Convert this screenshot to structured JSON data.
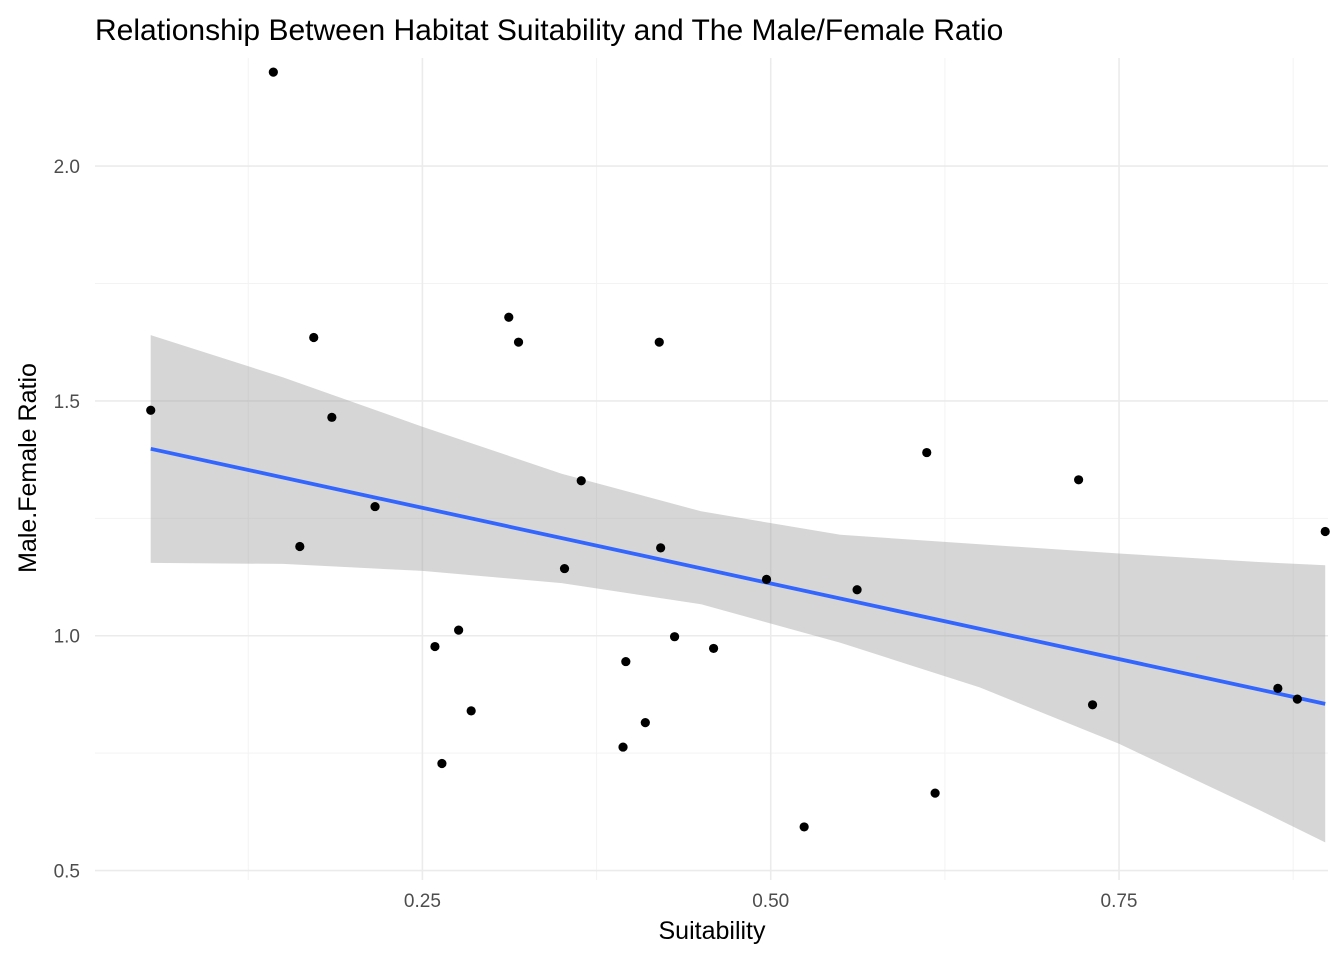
{
  "chart_data": {
    "type": "scatter",
    "title": "Relationship Between Habitat Suitability and The Male/Female Ratio",
    "xlabel": "Suitability",
    "ylabel": "Male.Female Ratio",
    "xlim": [
      0.015,
      0.9
    ],
    "ylim": [
      0.48,
      2.23
    ],
    "x_ticks": [
      0.25,
      0.5,
      0.75
    ],
    "x_tick_labels": [
      "0.25",
      "0.50",
      "0.75"
    ],
    "y_ticks": [
      0.5,
      1.0,
      1.5,
      2.0
    ],
    "y_tick_labels": [
      "0.5",
      "1.0",
      "1.5",
      "2.0"
    ],
    "grid": true,
    "legend": "none",
    "point_color": "#000000",
    "points": [
      {
        "x": 0.055,
        "y": 1.48
      },
      {
        "x": 0.143,
        "y": 2.2
      },
      {
        "x": 0.162,
        "y": 1.19
      },
      {
        "x": 0.172,
        "y": 1.635
      },
      {
        "x": 0.185,
        "y": 1.465
      },
      {
        "x": 0.216,
        "y": 1.275
      },
      {
        "x": 0.259,
        "y": 0.977
      },
      {
        "x": 0.264,
        "y": 0.728
      },
      {
        "x": 0.276,
        "y": 1.012
      },
      {
        "x": 0.285,
        "y": 0.84
      },
      {
        "x": 0.312,
        "y": 1.678
      },
      {
        "x": 0.319,
        "y": 1.625
      },
      {
        "x": 0.352,
        "y": 1.143
      },
      {
        "x": 0.364,
        "y": 1.33
      },
      {
        "x": 0.394,
        "y": 0.763
      },
      {
        "x": 0.396,
        "y": 0.945
      },
      {
        "x": 0.41,
        "y": 0.815
      },
      {
        "x": 0.42,
        "y": 1.625
      },
      {
        "x": 0.421,
        "y": 1.187
      },
      {
        "x": 0.431,
        "y": 0.998
      },
      {
        "x": 0.459,
        "y": 0.973
      },
      {
        "x": 0.497,
        "y": 1.12
      },
      {
        "x": 0.524,
        "y": 0.593
      },
      {
        "x": 0.562,
        "y": 1.098
      },
      {
        "x": 0.612,
        "y": 1.39
      },
      {
        "x": 0.618,
        "y": 0.665
      },
      {
        "x": 0.721,
        "y": 1.332
      },
      {
        "x": 0.731,
        "y": 0.853
      },
      {
        "x": 0.864,
        "y": 0.888
      },
      {
        "x": 0.878,
        "y": 0.865
      },
      {
        "x": 0.898,
        "y": 1.222
      }
    ],
    "trend_line": {
      "method": "linear",
      "color": "#3366FF",
      "x": [
        0.055,
        0.898
      ],
      "y": [
        1.398,
        0.855
      ]
    },
    "confidence_band": {
      "color": "#999999",
      "opacity": 0.4,
      "x": [
        0.055,
        0.15,
        0.25,
        0.35,
        0.45,
        0.55,
        0.65,
        0.75,
        0.85,
        0.898
      ],
      "upper": [
        1.64,
        1.55,
        1.445,
        1.345,
        1.265,
        1.215,
        1.195,
        1.175,
        1.157,
        1.15
      ],
      "lower": [
        1.155,
        1.153,
        1.138,
        1.112,
        1.067,
        0.985,
        0.89,
        0.77,
        0.63,
        0.56
      ]
    }
  }
}
